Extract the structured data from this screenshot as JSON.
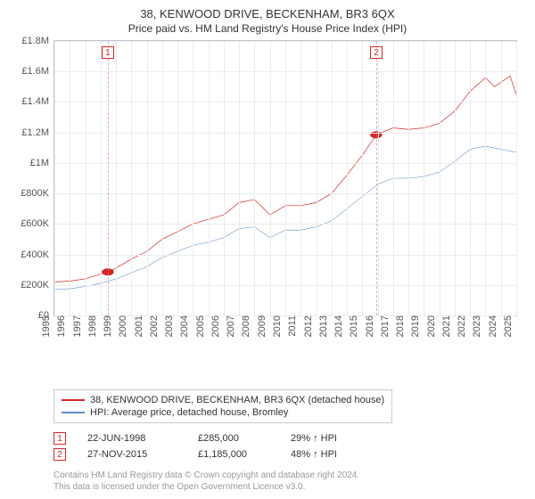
{
  "header": {
    "address": "38, KENWOOD DRIVE, BECKENHAM, BR3 6QX",
    "subtitle": "Price paid vs. HM Land Registry's House Price Index (HPI)"
  },
  "chart": {
    "type": "line",
    "background_color": "#ffffff",
    "border_color": "#bfc6cc",
    "grid_color": "#ececec",
    "text_color": "#555555",
    "title_fontsize": 13,
    "label_fontsize": 11,
    "y": {
      "min": 0,
      "max": 1800000,
      "tick_step": 200000,
      "ticks": [
        "£0",
        "£200K",
        "£400K",
        "£600K",
        "£800K",
        "£1M",
        "£1.2M",
        "£1.4M",
        "£1.6M",
        "£1.8M"
      ]
    },
    "x": {
      "min": 1995,
      "max": 2025,
      "tick_step": 1,
      "ticks": [
        "1995",
        "1996",
        "1997",
        "1998",
        "1999",
        "2000",
        "2001",
        "2002",
        "2003",
        "2004",
        "2005",
        "2006",
        "2007",
        "2008",
        "2009",
        "2010",
        "2011",
        "2012",
        "2013",
        "2014",
        "2015",
        "2016",
        "2017",
        "2018",
        "2019",
        "2020",
        "2021",
        "2022",
        "2023",
        "2024",
        "2025"
      ]
    },
    "series": [
      {
        "name": "38, KENWOOD DRIVE, BECKENHAM, BR3 6QX (detached house)",
        "color": "#d62728",
        "line_width": 2,
        "points": [
          [
            1995,
            220000
          ],
          [
            1996,
            225000
          ],
          [
            1997,
            240000
          ],
          [
            1998.47,
            285000
          ],
          [
            1999,
            310000
          ],
          [
            2000,
            370000
          ],
          [
            2001,
            420000
          ],
          [
            2002,
            500000
          ],
          [
            2003,
            550000
          ],
          [
            2004,
            600000
          ],
          [
            2005,
            630000
          ],
          [
            2006,
            660000
          ],
          [
            2007,
            740000
          ],
          [
            2008,
            760000
          ],
          [
            2008.6,
            700000
          ],
          [
            2009,
            660000
          ],
          [
            2010,
            720000
          ],
          [
            2011,
            720000
          ],
          [
            2012,
            740000
          ],
          [
            2013,
            800000
          ],
          [
            2014,
            920000
          ],
          [
            2015,
            1050000
          ],
          [
            2015.9,
            1185000
          ],
          [
            2016.5,
            1210000
          ],
          [
            2017,
            1230000
          ],
          [
            2018,
            1220000
          ],
          [
            2019,
            1230000
          ],
          [
            2020,
            1260000
          ],
          [
            2021,
            1340000
          ],
          [
            2022,
            1470000
          ],
          [
            2023,
            1560000
          ],
          [
            2023.6,
            1500000
          ],
          [
            2024,
            1530000
          ],
          [
            2024.6,
            1570000
          ],
          [
            2025,
            1450000
          ]
        ]
      },
      {
        "name": "HPI: Average price, detached house, Bromley",
        "color": "#5b8bc9",
        "line_width": 1.5,
        "points": [
          [
            1995,
            170000
          ],
          [
            1996,
            175000
          ],
          [
            1997,
            190000
          ],
          [
            1998,
            210000
          ],
          [
            1999,
            240000
          ],
          [
            2000,
            280000
          ],
          [
            2001,
            320000
          ],
          [
            2002,
            380000
          ],
          [
            2003,
            420000
          ],
          [
            2004,
            460000
          ],
          [
            2005,
            480000
          ],
          [
            2006,
            510000
          ],
          [
            2007,
            570000
          ],
          [
            2008,
            580000
          ],
          [
            2009,
            510000
          ],
          [
            2010,
            560000
          ],
          [
            2011,
            560000
          ],
          [
            2012,
            580000
          ],
          [
            2013,
            620000
          ],
          [
            2014,
            700000
          ],
          [
            2015,
            780000
          ],
          [
            2016,
            860000
          ],
          [
            2017,
            900000
          ],
          [
            2018,
            900000
          ],
          [
            2019,
            910000
          ],
          [
            2020,
            940000
          ],
          [
            2021,
            1010000
          ],
          [
            2022,
            1090000
          ],
          [
            2023,
            1110000
          ],
          [
            2024,
            1090000
          ],
          [
            2025,
            1070000
          ]
        ]
      }
    ],
    "sale_markers": [
      {
        "n": "1",
        "x": 1998.47,
        "y": 285000,
        "dot_color": "#d62728"
      },
      {
        "n": "2",
        "x": 2015.9,
        "y": 1185000,
        "dot_color": "#d62728"
      }
    ]
  },
  "legend": {
    "border_color": "#cccccc",
    "rows": [
      {
        "color": "#d62728",
        "label": "38, KENWOOD DRIVE, BECKENHAM, BR3 6QX (detached house)"
      },
      {
        "color": "#5b8bc9",
        "label": "HPI: Average price, detached house, Bromley"
      }
    ]
  },
  "sales": [
    {
      "n": "1",
      "date": "22-JUN-1998",
      "price": "£285,000",
      "delta": "29% ↑ HPI"
    },
    {
      "n": "2",
      "date": "27-NOV-2015",
      "price": "£1,185,000",
      "delta": "48% ↑ HPI"
    }
  ],
  "footnote": {
    "line1": "Contains HM Land Registry data © Crown copyright and database right 2024.",
    "line2": "This data is licensed under the Open Government Licence v3.0."
  }
}
